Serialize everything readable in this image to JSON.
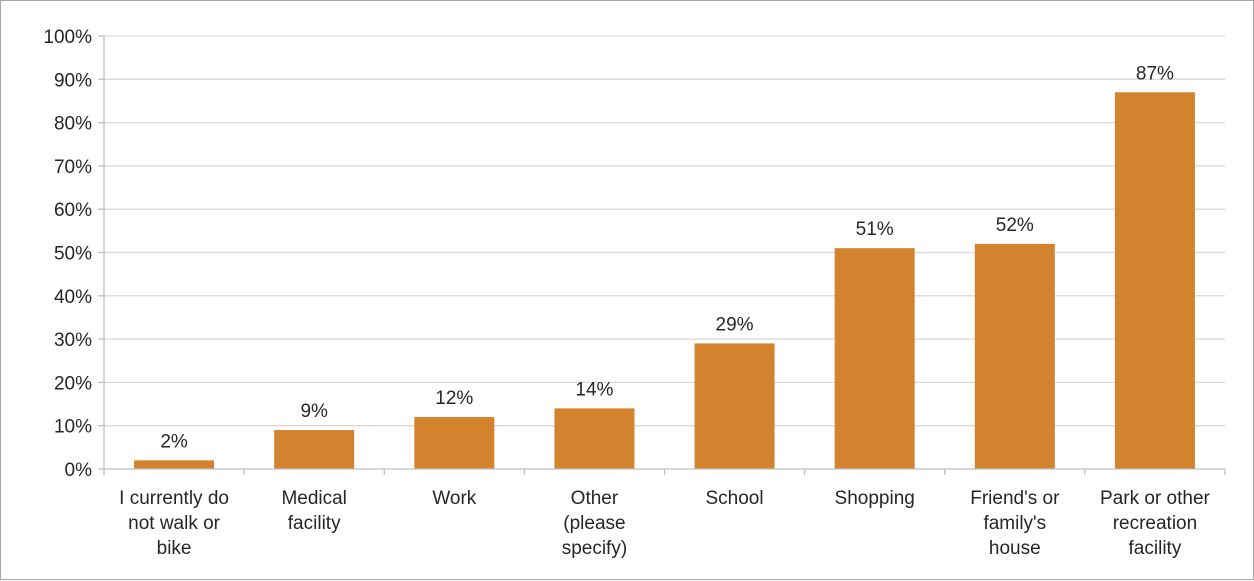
{
  "chart_data": {
    "type": "bar",
    "title": "",
    "xlabel": "",
    "ylabel": "",
    "categories": [
      [
        "I currently do",
        "not walk or",
        "bike"
      ],
      [
        "Medical",
        "facility"
      ],
      [
        "Work"
      ],
      [
        "Other",
        "(please",
        "specify)"
      ],
      [
        "School"
      ],
      [
        "Shopping"
      ],
      [
        "Friend's or",
        "family's",
        "house"
      ],
      [
        "Park or other",
        "recreation",
        "facility"
      ]
    ],
    "values": [
      2,
      9,
      12,
      14,
      29,
      51,
      52,
      87
    ],
    "value_labels": [
      "2%",
      "9%",
      "12%",
      "14%",
      "29%",
      "51%",
      "52%",
      "87%"
    ],
    "ylim": [
      0,
      100
    ],
    "yticks": [
      0,
      10,
      20,
      30,
      40,
      50,
      60,
      70,
      80,
      90,
      100
    ],
    "ytick_labels": [
      "0%",
      "10%",
      "20%",
      "30%",
      "40%",
      "50%",
      "60%",
      "70%",
      "80%",
      "90%",
      "100%"
    ],
    "grid": true,
    "legend": "none",
    "colors": {
      "bar": "#D3832E",
      "grid": "#d9d9d9",
      "axis": "#bfbfbf",
      "text": "#262626"
    }
  }
}
